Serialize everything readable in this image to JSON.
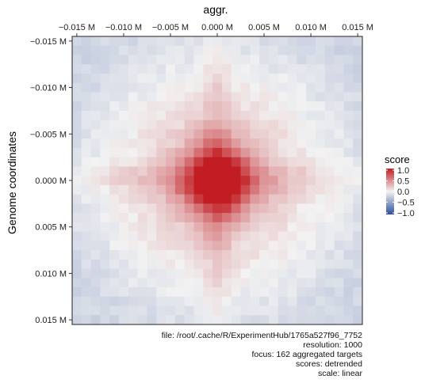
{
  "chart_data": {
    "type": "heatmap",
    "title": "aggr.",
    "ylabel": "Genome coordinates",
    "x_ticks": [
      "−0.015 M",
      "−0.010 M",
      "−0.005 M",
      "0.000 M",
      "0.005 M",
      "0.010 M",
      "0.015 M"
    ],
    "y_ticks": [
      "−0.015 M",
      "−0.010 M",
      "−0.005 M",
      "0.000 M",
      "0.005 M",
      "0.010 M",
      "0.015 M"
    ],
    "tick_values": [
      -15000,
      -10000,
      -5000,
      0,
      5000,
      10000,
      15000
    ],
    "range": [
      -15500,
      15500
    ],
    "bins": 31,
    "resolution": 1000,
    "color_scale": {
      "low": "#2c4f9e",
      "mid": "#f2f2f2",
      "high": "#c21d23",
      "limits": [
        -1.0,
        1.0
      ]
    },
    "matrix_model": {
      "peak": 1.0,
      "peak_sigma_bins": 2.5,
      "halo": 0.25,
      "halo_sigma_bins": 7,
      "cross_stripe": 0.18,
      "cross_stripe_sigma_bins": 1.2,
      "far_field": -0.18,
      "noise": 0.05
    },
    "legend": {
      "title": "score",
      "ticks": [
        "1.0",
        "0.5",
        "0.0",
        "−0.5",
        "−1.0"
      ],
      "tick_values": [
        1.0,
        0.5,
        0.0,
        -0.5,
        -1.0
      ],
      "placement": "right"
    }
  },
  "caption": {
    "file": "file: /root/.cache/R/ExperimentHub/1765a527f96_7752",
    "resolution": "resolution: 1000",
    "focus": "focus: 162 aggregated targets",
    "scores": "scores: detrended",
    "scale": "scale: linear"
  }
}
